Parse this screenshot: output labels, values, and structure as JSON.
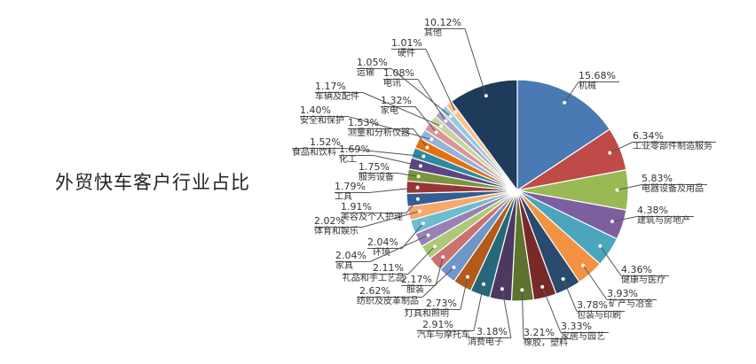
{
  "chart_data": {
    "type": "pie",
    "title": "外贸快车客户行业占比",
    "start": "top",
    "direction": "clockwise",
    "slices": [
      {
        "label": "机械",
        "value": 15.68,
        "display": "15.68%",
        "color": "#4A7AB3"
      },
      {
        "label": "工业零部件制造服务",
        "value": 6.34,
        "display": "6.34%",
        "color": "#BE4B48"
      },
      {
        "label": "电器设备及用品",
        "value": 5.83,
        "display": "5.83%",
        "color": "#98B954"
      },
      {
        "label": "建筑与房地产",
        "value": 4.38,
        "display": "4.38%",
        "color": "#7D5FA0"
      },
      {
        "label": "健康与医疗",
        "value": 4.36,
        "display": "4.36%",
        "color": "#4AA6BF"
      },
      {
        "label": "矿产与冶金",
        "value": 3.93,
        "display": "3.93%",
        "color": "#F39242"
      },
      {
        "label": "包装与印刷",
        "value": 3.78,
        "display": "3.78%",
        "color": "#2A4A6E"
      },
      {
        "label": "家居与园艺",
        "value": 3.33,
        "display": "3.33%",
        "color": "#772A28"
      },
      {
        "label": "橡胶，塑料",
        "value": 3.21,
        "display": "3.21%",
        "color": "#5E732E"
      },
      {
        "label": "消费电子",
        "value": 3.18,
        "display": "3.18%",
        "color": "#4B3960"
      },
      {
        "label": "汽车与摩托车",
        "value": 2.91,
        "display": "2.91%",
        "color": "#26687A"
      },
      {
        "label": "灯具和照明",
        "value": 2.73,
        "display": "2.73%",
        "color": "#B45A1A"
      },
      {
        "label": "纺织及皮革制品",
        "value": 2.62,
        "display": "2.62%",
        "color": "#6E97C8"
      },
      {
        "label": "服装",
        "value": 2.17,
        "display": "2.17%",
        "color": "#CB716F"
      },
      {
        "label": "礼品和手工艺品",
        "value": 2.11,
        "display": "2.11%",
        "color": "#ADC878"
      },
      {
        "label": "家具",
        "value": 2.04,
        "display": "2.04%",
        "color": "#9782B4"
      },
      {
        "label": "环境",
        "value": 2.04,
        "display": "2.04%",
        "color": "#6DBBD0"
      },
      {
        "label": "体育和娱乐",
        "value": 2.02,
        "display": "2.02%",
        "color": "#F6A96A"
      },
      {
        "label": "美容及个人护理",
        "value": 1.91,
        "display": "1.91%",
        "color": "#345E91"
      },
      {
        "label": "工具",
        "value": 1.79,
        "display": "1.79%",
        "color": "#993634"
      },
      {
        "label": "服务设备",
        "value": 1.75,
        "display": "1.75%",
        "color": "#78963D"
      },
      {
        "label": "化工",
        "value": 1.69,
        "display": "1.69%",
        "color": "#5D4581"
      },
      {
        "label": "食品和饮料",
        "value": 1.52,
        "display": "1.52%",
        "color": "#2E8AA0"
      },
      {
        "label": "测量和分析仪器",
        "value": 1.53,
        "display": "1.53%",
        "color": "#E56F10"
      },
      {
        "label": "安全和保护",
        "value": 1.4,
        "display": "1.40%",
        "color": "#95B3D7"
      },
      {
        "label": "家电",
        "value": 1.32,
        "display": "1.32%",
        "color": "#D99694"
      },
      {
        "label": "车辆及配件",
        "value": 1.17,
        "display": "1.17%",
        "color": "#C3D69B"
      },
      {
        "label": "电讯",
        "value": 1.08,
        "display": "1.08%",
        "color": "#B2A1C7"
      },
      {
        "label": "运输",
        "value": 1.05,
        "display": "1.05%",
        "color": "#93CDDD"
      },
      {
        "label": "硬件",
        "value": 1.01,
        "display": "1.01%",
        "color": "#FAC090"
      },
      {
        "label": "其他",
        "value": 10.12,
        "display": "10.12%",
        "color": "#1F3B5C"
      }
    ]
  }
}
